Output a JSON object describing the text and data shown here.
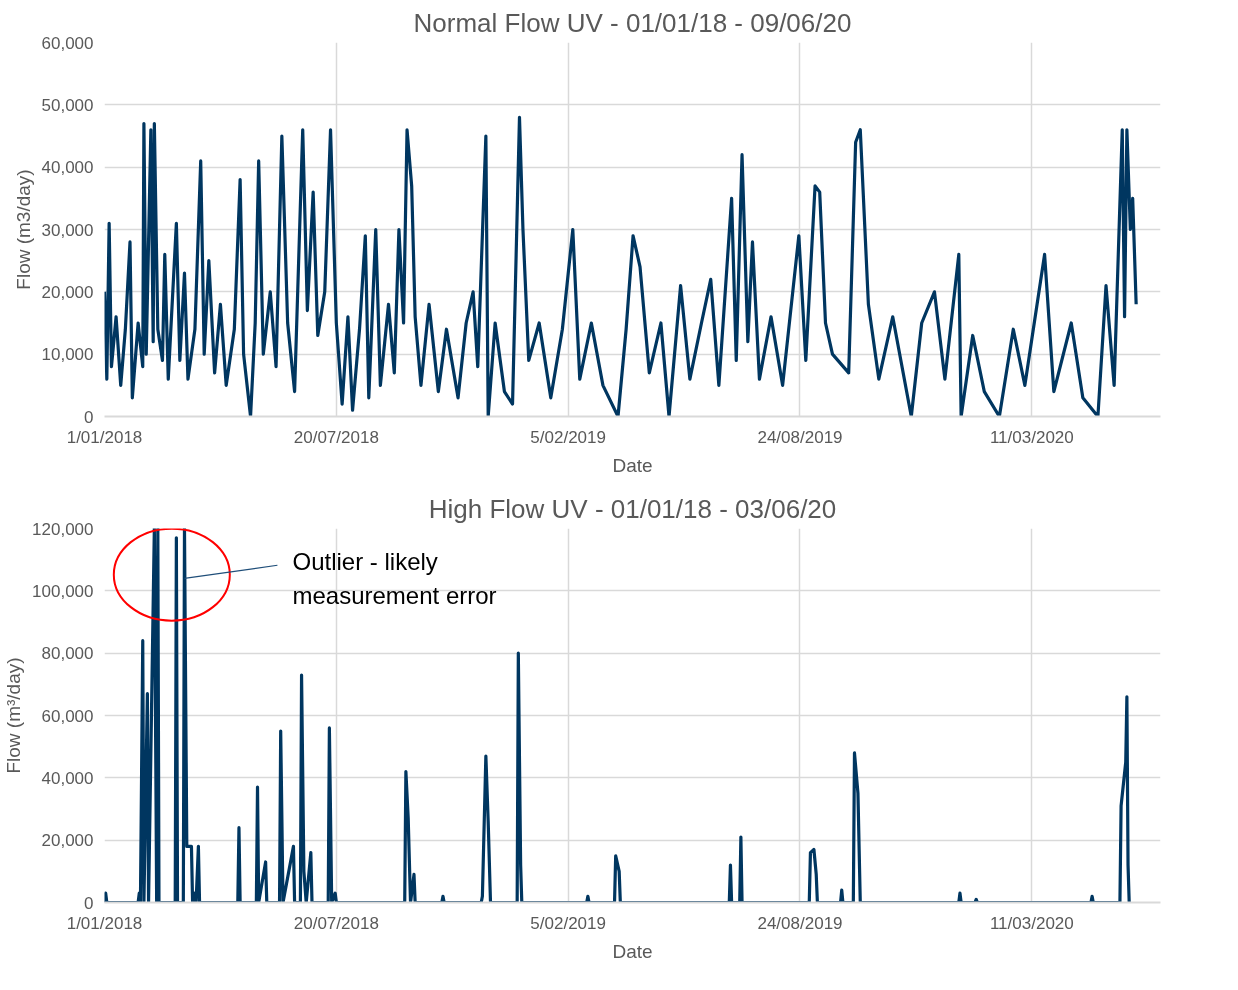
{
  "chart_data": [
    {
      "type": "line",
      "title": "Normal Flow UV - 01/01/18 - 09/06/20",
      "xlabel": "Date",
      "ylabel": "Flow (m3/day)",
      "grid": true,
      "xlim": [
        "2018-01-01",
        "2020-06-30"
      ],
      "xticks": [
        {
          "value": "2018-01-01",
          "label": "1/01/2018"
        },
        {
          "value": "2018-07-20",
          "label": "20/07/2018"
        },
        {
          "value": "2019-02-05",
          "label": "5/02/2019"
        },
        {
          "value": "2019-08-24",
          "label": "24/08/2019"
        },
        {
          "value": "2020-03-11",
          "label": "11/03/2020"
        }
      ],
      "ylim": [
        0,
        60000
      ],
      "yticks": [
        0,
        {
          "value": 10000,
          "label": "10,000"
        },
        {
          "value": 20000,
          "label": "20,000"
        },
        {
          "value": 30000,
          "label": "30,000"
        },
        {
          "value": 40000,
          "label": "40,000"
        },
        {
          "value": 50000,
          "label": "50,000"
        },
        {
          "value": 60000,
          "label": "60,000"
        }
      ],
      "x": [
        "2018-01-01",
        "2018-01-03",
        "2018-01-05",
        "2018-01-07",
        "2018-01-11",
        "2018-01-15",
        "2018-01-19",
        "2018-01-23",
        "2018-01-25",
        "2018-01-30",
        "2018-02-03",
        "2018-02-04",
        "2018-02-06",
        "2018-02-10",
        "2018-02-12",
        "2018-02-13",
        "2018-02-16",
        "2018-02-20",
        "2018-02-22",
        "2018-02-25",
        "2018-03-04",
        "2018-03-07",
        "2018-03-11",
        "2018-03-14",
        "2018-03-20",
        "2018-03-25",
        "2018-03-28",
        "2018-04-01",
        "2018-04-06",
        "2018-04-11",
        "2018-04-16",
        "2018-04-23",
        "2018-04-28",
        "2018-05-01",
        "2018-05-07",
        "2018-05-11",
        "2018-05-14",
        "2018-05-18",
        "2018-05-24",
        "2018-05-29",
        "2018-06-03",
        "2018-06-08",
        "2018-06-14",
        "2018-06-21",
        "2018-06-25",
        "2018-06-30",
        "2018-07-04",
        "2018-07-10",
        "2018-07-15",
        "2018-07-20",
        "2018-07-25",
        "2018-07-30",
        "2018-08-03",
        "2018-08-09",
        "2018-08-14",
        "2018-08-17",
        "2018-08-23",
        "2018-08-27",
        "2018-09-03",
        "2018-09-08",
        "2018-09-12",
        "2018-09-16",
        "2018-09-19",
        "2018-09-23",
        "2018-09-26",
        "2018-10-01",
        "2018-10-08",
        "2018-10-16",
        "2018-10-23",
        "2018-11-02",
        "2018-11-09",
        "2018-11-15",
        "2018-11-19",
        "2018-11-26",
        "2018-11-28",
        "2018-12-04",
        "2018-12-12",
        "2018-12-19",
        "2018-12-25",
        "2018-12-28",
        "2019-01-02",
        "2019-01-11",
        "2019-01-21",
        "2019-01-31",
        "2019-02-09",
        "2019-02-15",
        "2019-02-25",
        "2019-03-07",
        "2019-03-20",
        "2019-03-27",
        "2019-04-02",
        "2019-04-08",
        "2019-04-16",
        "2019-04-26",
        "2019-05-03",
        "2019-05-13",
        "2019-05-21",
        "2019-05-31",
        "2019-06-08",
        "2019-06-15",
        "2019-06-26",
        "2019-06-30",
        "2019-07-05",
        "2019-07-10",
        "2019-07-14",
        "2019-07-20",
        "2019-07-30",
        "2019-08-09",
        "2019-08-23",
        "2019-08-29",
        "2019-09-06",
        "2019-09-10",
        "2019-09-15",
        "2019-09-21",
        "2019-10-05",
        "2019-10-11",
        "2019-10-15",
        "2019-10-22",
        "2019-10-31",
        "2019-11-12",
        "2019-11-28",
        "2019-12-07",
        "2019-12-18",
        "2019-12-27",
        "2020-01-08",
        "2020-01-10",
        "2020-01-20",
        "2020-01-30",
        "2020-02-12",
        "2020-02-24",
        "2020-03-05",
        "2020-03-22",
        "2020-03-30",
        "2020-04-14",
        "2020-04-24",
        "2020-05-07",
        "2020-05-14",
        "2020-05-21",
        "2020-05-28",
        "2020-05-30",
        "2020-06-01",
        "2020-06-04",
        "2020-06-06",
        "2020-06-09"
      ],
      "series": [
        {
          "color": "#003660",
          "values": [
            20000,
            6000,
            31000,
            8000,
            16000,
            5000,
            14000,
            28000,
            3000,
            15000,
            8000,
            47000,
            10000,
            46000,
            12000,
            47000,
            14000,
            9000,
            26000,
            6000,
            31000,
            9000,
            23000,
            6000,
            14000,
            41000,
            10000,
            25000,
            7000,
            18000,
            5000,
            14000,
            38000,
            10000,
            0,
            15000,
            41000,
            10000,
            20000,
            8000,
            45000,
            15000,
            4000,
            46000,
            17000,
            36000,
            13000,
            20000,
            46000,
            15000,
            2000,
            16000,
            1000,
            14000,
            29000,
            3000,
            30000,
            5000,
            18000,
            7000,
            30000,
            15000,
            46000,
            37000,
            16000,
            5000,
            18000,
            4000,
            14000,
            3000,
            15000,
            20000,
            8000,
            45000,
            0,
            15000,
            4000,
            2000,
            48000,
            30000,
            9000,
            15000,
            3000,
            14000,
            30000,
            6000,
            15000,
            5000,
            0,
            14000,
            29000,
            24000,
            7000,
            15000,
            0,
            21000,
            6000,
            15000,
            22000,
            5000,
            35000,
            9000,
            42000,
            12000,
            28000,
            6000,
            16000,
            5000,
            29000,
            9000,
            37000,
            36000,
            15000,
            10000,
            7000,
            44000,
            46000,
            18000,
            6000,
            16000,
            0,
            15000,
            20000,
            6000,
            26000,
            0,
            13000,
            4000,
            0,
            14000,
            5000,
            26000,
            4000,
            15000,
            3000,
            0,
            21000,
            5000,
            46000,
            16000,
            46000,
            30000,
            35000,
            18000
          ]
        }
      ]
    },
    {
      "type": "line",
      "title": "High Flow UV - 01/01/18 - 03/06/20",
      "xlabel": "Date",
      "ylabel": "Flow (m³/day)",
      "grid": true,
      "xlim": [
        "2018-01-01",
        "2020-06-30"
      ],
      "xticks": [
        {
          "value": "2018-01-01",
          "label": "1/01/2018"
        },
        {
          "value": "2018-07-20",
          "label": "20/07/2018"
        },
        {
          "value": "2019-02-05",
          "label": "5/02/2019"
        },
        {
          "value": "2019-08-24",
          "label": "24/08/2019"
        },
        {
          "value": "2020-03-11",
          "label": "11/03/2020"
        }
      ],
      "ylim": [
        0,
        120000
      ],
      "yticks": [
        0,
        {
          "value": 20000,
          "label": "20,000"
        },
        {
          "value": 40000,
          "label": "40,000"
        },
        {
          "value": 60000,
          "label": "60,000"
        },
        {
          "value": 80000,
          "label": "80,000"
        },
        {
          "value": 100000,
          "label": "100,000"
        },
        {
          "value": 120000,
          "label": "120,000"
        }
      ],
      "annotations": [
        {
          "text": "Outlier - likely\nmeasurement error",
          "x": "2018-03-11",
          "y": 104000
        }
      ],
      "x": [
        "2018-01-01",
        "2018-01-02",
        "2018-01-03",
        "2018-01-30",
        "2018-01-31",
        "2018-02-01",
        "2018-02-03",
        "2018-02-04",
        "2018-02-07",
        "2018-02-08",
        "2018-02-13",
        "2018-02-15",
        "2018-02-16",
        "2018-02-17",
        "2018-03-03",
        "2018-03-04",
        "2018-03-05",
        "2018-03-10",
        "2018-03-11",
        "2018-03-13",
        "2018-03-17",
        "2018-03-18",
        "2018-03-20",
        "2018-03-21",
        "2018-03-23",
        "2018-03-24",
        "2018-04-26",
        "2018-04-27",
        "2018-04-28",
        "2018-05-12",
        "2018-05-13",
        "2018-05-14",
        "2018-05-20",
        "2018-05-21",
        "2018-06-01",
        "2018-06-02",
        "2018-06-04",
        "2018-06-13",
        "2018-06-14",
        "2018-06-19",
        "2018-06-20",
        "2018-06-22",
        "2018-06-24",
        "2018-06-28",
        "2018-06-29",
        "2018-07-13",
        "2018-07-14",
        "2018-07-16",
        "2018-07-19",
        "2018-07-20",
        "2018-09-17",
        "2018-09-18",
        "2018-09-20",
        "2018-09-22",
        "2018-09-25",
        "2018-09-26",
        "2018-10-19",
        "2018-10-20",
        "2018-10-21",
        "2018-11-22",
        "2018-11-23",
        "2018-11-26",
        "2018-11-28",
        "2018-11-30",
        "2018-12-23",
        "2018-12-24",
        "2018-12-26",
        "2018-12-27",
        "2019-02-21",
        "2019-02-22",
        "2019-02-23",
        "2019-03-17",
        "2019-03-18",
        "2019-03-21",
        "2019-03-22",
        "2019-06-24",
        "2019-06-25",
        "2019-06-26",
        "2019-07-03",
        "2019-07-04",
        "2019-07-05",
        "2019-09-01",
        "2019-09-02",
        "2019-09-05",
        "2019-09-07",
        "2019-09-08",
        "2019-09-28",
        "2019-09-29",
        "2019-09-30",
        "2019-10-09",
        "2019-10-10",
        "2019-10-13",
        "2019-10-15",
        "2020-01-08",
        "2020-01-09",
        "2020-01-10",
        "2020-01-22",
        "2020-01-23",
        "2020-01-24",
        "2020-05-01",
        "2020-05-02",
        "2020-05-03",
        "2020-05-26",
        "2020-05-27",
        "2020-05-31",
        "2020-06-01",
        "2020-06-02",
        "2020-06-03"
      ],
      "series": [
        {
          "color": "#003660",
          "values": [
            0,
            3000,
            0,
            0,
            3000,
            0,
            84000,
            0,
            67000,
            0,
            120000,
            0,
            120000,
            0,
            0,
            117000,
            0,
            0,
            120000,
            18000,
            18000,
            0,
            3000,
            0,
            18000,
            0,
            0,
            24000,
            0,
            0,
            37000,
            0,
            13000,
            0,
            0,
            55000,
            0,
            18000,
            0,
            0,
            73000,
            10000,
            0,
            16000,
            0,
            0,
            56000,
            0,
            3000,
            0,
            0,
            42000,
            27000,
            0,
            9000,
            0,
            0,
            2000,
            0,
            0,
            2000,
            47000,
            26000,
            0,
            0,
            80000,
            12000,
            0,
            0,
            2000,
            0,
            0,
            15000,
            10000,
            0,
            0,
            12000,
            0,
            0,
            21000,
            0,
            0,
            16000,
            17000,
            9000,
            0,
            0,
            4000,
            0,
            0,
            48000,
            35000,
            0,
            0,
            3000,
            0,
            0,
            1000,
            0,
            0,
            2000,
            0,
            0,
            31000,
            45000,
            66000,
            12000,
            0
          ]
        }
      ]
    }
  ]
}
